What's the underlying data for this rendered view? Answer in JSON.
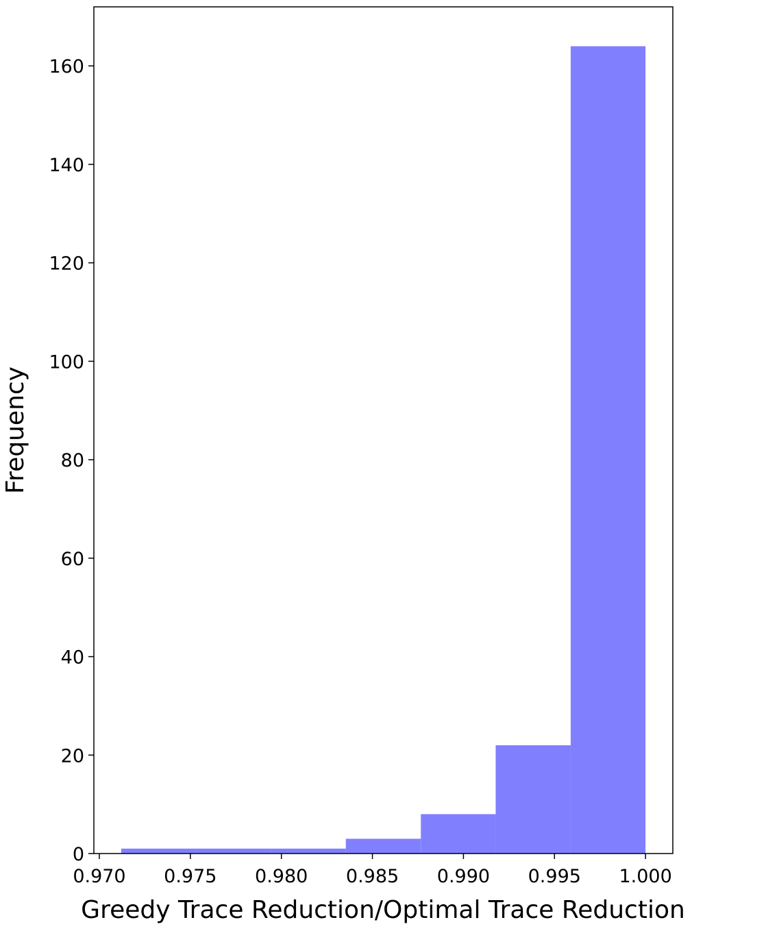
{
  "chart_data": {
    "type": "histogram",
    "xlabel": "Greedy Trace Reduction/Optimal Trace Reduction",
    "ylabel": "Frequency",
    "bins": [
      0.9712,
      0.97531,
      0.97943,
      0.98354,
      0.98766,
      0.99177,
      0.99589,
      1.0
    ],
    "values": [
      1,
      1,
      1,
      3,
      8,
      22,
      164
    ],
    "color": "#8080ff",
    "xlim": [
      0.9697,
      1.0015
    ],
    "ylim": [
      0,
      172
    ],
    "xticks": [
      {
        "value": 0.97,
        "label": "0.970"
      },
      {
        "value": 0.975,
        "label": "0.975"
      },
      {
        "value": 0.98,
        "label": "0.980"
      },
      {
        "value": 0.985,
        "label": "0.985"
      },
      {
        "value": 0.99,
        "label": "0.990"
      },
      {
        "value": 0.995,
        "label": "0.995"
      },
      {
        "value": 1.0,
        "label": "1.000"
      }
    ],
    "yticks": [
      0,
      20,
      40,
      60,
      80,
      100,
      120,
      140,
      160
    ]
  }
}
